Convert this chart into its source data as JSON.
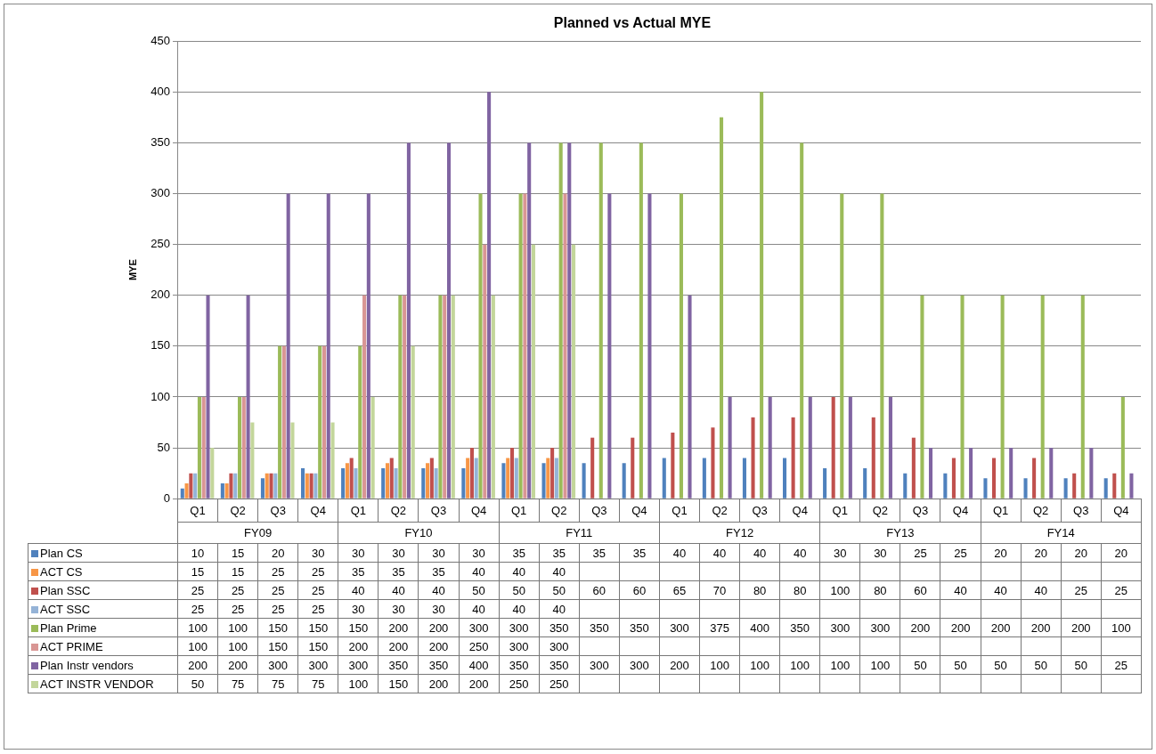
{
  "chart_data": {
    "type": "bar",
    "title": "Planned vs Actual MYE",
    "ylabel": "MYE",
    "categories": [
      "Q1",
      "Q2",
      "Q3",
      "Q4",
      "Q1",
      "Q2",
      "Q3",
      "Q4",
      "Q1",
      "Q2",
      "Q3",
      "Q4",
      "Q1",
      "Q2",
      "Q3",
      "Q4",
      "Q1",
      "Q2",
      "Q3",
      "Q4",
      "Q1",
      "Q2",
      "Q3",
      "Q4"
    ],
    "annotations": [
      "FY09",
      "FY10",
      "FY11",
      "FY12",
      "FY13",
      "FY14"
    ],
    "series": [
      {
        "name": "Plan CS",
        "color": "#4f81bd",
        "values": [
          10,
          15,
          20,
          30,
          30,
          30,
          30,
          30,
          35,
          35,
          35,
          35,
          40,
          40,
          40,
          40,
          30,
          30,
          25,
          25,
          20,
          20,
          20,
          20
        ]
      },
      {
        "name": "ACT CS",
        "color": "#f79646",
        "values": [
          15,
          15,
          25,
          25,
          35,
          35,
          35,
          40,
          40,
          40,
          null,
          null,
          null,
          null,
          null,
          null,
          null,
          null,
          null,
          null,
          null,
          null,
          null,
          null
        ]
      },
      {
        "name": "Plan SSC",
        "color": "#c0504d",
        "values": [
          25,
          25,
          25,
          25,
          40,
          40,
          40,
          50,
          50,
          50,
          60,
          60,
          65,
          70,
          80,
          80,
          100,
          80,
          60,
          40,
          40,
          40,
          25,
          25
        ]
      },
      {
        "name": "ACT SSC",
        "color": "#95b3d7",
        "values": [
          25,
          25,
          25,
          25,
          30,
          30,
          30,
          40,
          40,
          40,
          null,
          null,
          null,
          null,
          null,
          null,
          null,
          null,
          null,
          null,
          null,
          null,
          null,
          null
        ]
      },
      {
        "name": "Plan Prime",
        "color": "#9bbb59",
        "values": [
          100,
          100,
          150,
          150,
          150,
          200,
          200,
          300,
          300,
          350,
          350,
          350,
          300,
          375,
          400,
          350,
          300,
          300,
          200,
          200,
          200,
          200,
          200,
          100
        ]
      },
      {
        "name": "ACT PRIME",
        "color": "#d99694",
        "values": [
          100,
          100,
          150,
          150,
          200,
          200,
          200,
          250,
          300,
          300,
          null,
          null,
          null,
          null,
          null,
          null,
          null,
          null,
          null,
          null,
          null,
          null,
          null,
          null
        ]
      },
      {
        "name": "Plan Instr vendors",
        "color": "#8064a2",
        "values": [
          200,
          200,
          300,
          300,
          300,
          350,
          350,
          400,
          350,
          350,
          300,
          300,
          200,
          100,
          100,
          100,
          100,
          100,
          50,
          50,
          50,
          50,
          50,
          25
        ]
      },
      {
        "name": "ACT INSTR VENDOR",
        "color": "#c3d69b",
        "values": [
          50,
          75,
          75,
          75,
          100,
          150,
          200,
          200,
          250,
          250,
          null,
          null,
          null,
          null,
          null,
          null,
          null,
          null,
          null,
          null,
          null,
          null,
          null,
          null
        ]
      }
    ],
    "ylim": [
      0,
      450
    ],
    "yticks": [
      0,
      50,
      100,
      150,
      200,
      250,
      300,
      350,
      400,
      450
    ],
    "grid": "y",
    "legend": "bottom",
    "data_labels": true
  }
}
